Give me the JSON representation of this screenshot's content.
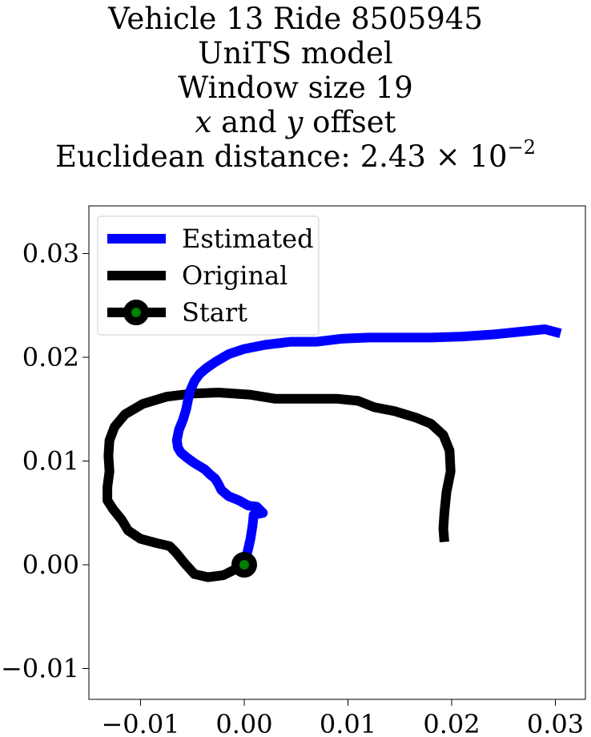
{
  "title": {
    "line1": "Vehicle 13 Ride 8505945",
    "line2": "UniTS model",
    "line3": "Window size 19",
    "line4_x": "x",
    "line4_and": " and ",
    "line4_y": "y",
    "line4_rest": " offset",
    "line5_prefix": "Euclidean distance: 2.43 × 10",
    "line5_exp": "−2"
  },
  "chart_data": {
    "type": "line",
    "xlim": [
      -0.015,
      0.033
    ],
    "ylim": [
      -0.013,
      0.0345
    ],
    "xticks": [
      -0.01,
      0.0,
      0.01,
      0.02,
      0.03
    ],
    "yticks": [
      -0.01,
      0.0,
      0.01,
      0.02,
      0.03
    ],
    "xtick_labels": [
      "−0.01",
      "0.00",
      "0.01",
      "0.02",
      "0.03"
    ],
    "ytick_labels": [
      "−0.01",
      "0.00",
      "0.01",
      "0.02",
      "0.03"
    ],
    "grid": false,
    "legend_position": "top-left",
    "series": [
      {
        "name": "Estimated",
        "color": "#0000ff",
        "points": [
          [
            0.0,
            0.0
          ],
          [
            0.0003,
            0.0012
          ],
          [
            0.0006,
            0.0025
          ],
          [
            0.0008,
            0.0038
          ],
          [
            0.0009,
            0.0048
          ],
          [
            0.0018,
            0.005
          ],
          [
            0.0012,
            0.0056
          ],
          [
            0.0004,
            0.0057
          ],
          [
            -0.0005,
            0.0062
          ],
          [
            -0.0015,
            0.0066
          ],
          [
            -0.0022,
            0.0072
          ],
          [
            -0.0025,
            0.0078
          ],
          [
            -0.0028,
            0.0083
          ],
          [
            -0.0033,
            0.0087
          ],
          [
            -0.0038,
            0.0092
          ],
          [
            -0.0043,
            0.0095
          ],
          [
            -0.0048,
            0.0098
          ],
          [
            -0.0055,
            0.0103
          ],
          [
            -0.0061,
            0.0108
          ],
          [
            -0.0064,
            0.0113
          ],
          [
            -0.0065,
            0.012
          ],
          [
            -0.0063,
            0.013
          ],
          [
            -0.0059,
            0.014
          ],
          [
            -0.0056,
            0.015
          ],
          [
            -0.0054,
            0.016
          ],
          [
            -0.0052,
            0.0168
          ],
          [
            -0.0048,
            0.0177
          ],
          [
            -0.0043,
            0.0184
          ],
          [
            -0.0036,
            0.019
          ],
          [
            -0.0027,
            0.0196
          ],
          [
            -0.0015,
            0.0203
          ],
          [
            0.0,
            0.0208
          ],
          [
            0.002,
            0.0212
          ],
          [
            0.0045,
            0.0215
          ],
          [
            0.007,
            0.0215
          ],
          [
            0.0095,
            0.0218
          ],
          [
            0.012,
            0.0219
          ],
          [
            0.015,
            0.0219
          ],
          [
            0.018,
            0.0219
          ],
          [
            0.021,
            0.022
          ],
          [
            0.024,
            0.0222
          ],
          [
            0.027,
            0.0225
          ],
          [
            0.029,
            0.0227
          ],
          [
            0.0305,
            0.0223
          ]
        ]
      },
      {
        "name": "Original",
        "color": "#000000",
        "points": [
          [
            0.0,
            0.0
          ],
          [
            -0.002,
            -0.001
          ],
          [
            -0.0035,
            -0.0012
          ],
          [
            -0.0048,
            -0.0009
          ],
          [
            -0.0058,
            0.0002
          ],
          [
            -0.0066,
            0.0012
          ],
          [
            -0.0072,
            0.0018
          ],
          [
            -0.0085,
            0.0021
          ],
          [
            -0.01,
            0.0025
          ],
          [
            -0.0112,
            0.0033
          ],
          [
            -0.0118,
            0.0043
          ],
          [
            -0.0126,
            0.0053
          ],
          [
            -0.0132,
            0.0062
          ],
          [
            -0.0132,
            0.0075
          ],
          [
            -0.013,
            0.009
          ],
          [
            -0.0131,
            0.0105
          ],
          [
            -0.013,
            0.012
          ],
          [
            -0.0125,
            0.0133
          ],
          [
            -0.0115,
            0.0145
          ],
          [
            -0.0098,
            0.0155
          ],
          [
            -0.0075,
            0.0162
          ],
          [
            -0.005,
            0.0165
          ],
          [
            -0.0025,
            0.0166
          ],
          [
            0.0005,
            0.0164
          ],
          [
            0.003,
            0.016
          ],
          [
            0.006,
            0.016
          ],
          [
            0.009,
            0.016
          ],
          [
            0.011,
            0.0158
          ],
          [
            0.0125,
            0.0152
          ],
          [
            0.0145,
            0.0148
          ],
          [
            0.0165,
            0.0142
          ],
          [
            0.018,
            0.0136
          ],
          [
            0.0192,
            0.0125
          ],
          [
            0.0198,
            0.011
          ],
          [
            0.0199,
            0.009
          ],
          [
            0.0195,
            0.007
          ],
          [
            0.0193,
            0.005
          ],
          [
            0.0192,
            0.0035
          ],
          [
            0.0193,
            0.0022
          ]
        ]
      },
      {
        "name": "Start",
        "color": "#000000",
        "marker_face": "#008000",
        "points": [
          [
            0.0,
            0.0
          ]
        ]
      }
    ]
  }
}
